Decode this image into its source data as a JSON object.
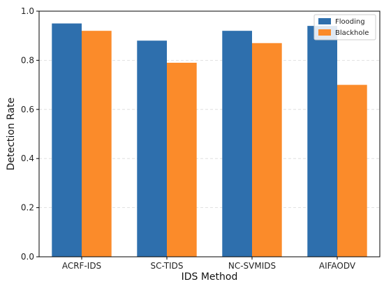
{
  "chart_data": {
    "type": "bar",
    "title": "",
    "xlabel": "IDS Method",
    "ylabel": "Detection Rate",
    "categories": [
      "ACRF-IDS",
      "SC-TIDS",
      "NC-SVMIDS",
      "AIFAODV"
    ],
    "series": [
      {
        "name": "Flooding",
        "color": "#2e6fad",
        "values": [
          0.95,
          0.88,
          0.92,
          0.94
        ]
      },
      {
        "name": "Blackhole",
        "color": "#fb8b2a",
        "values": [
          0.92,
          0.79,
          0.87,
          0.7
        ]
      }
    ],
    "ylim": [
      0.0,
      1.0
    ],
    "yticks": [
      "0.0",
      "0.2",
      "0.4",
      "0.6",
      "0.8",
      "1.0"
    ],
    "grid": "horizontal-dashed",
    "legend_position": "top-right"
  }
}
